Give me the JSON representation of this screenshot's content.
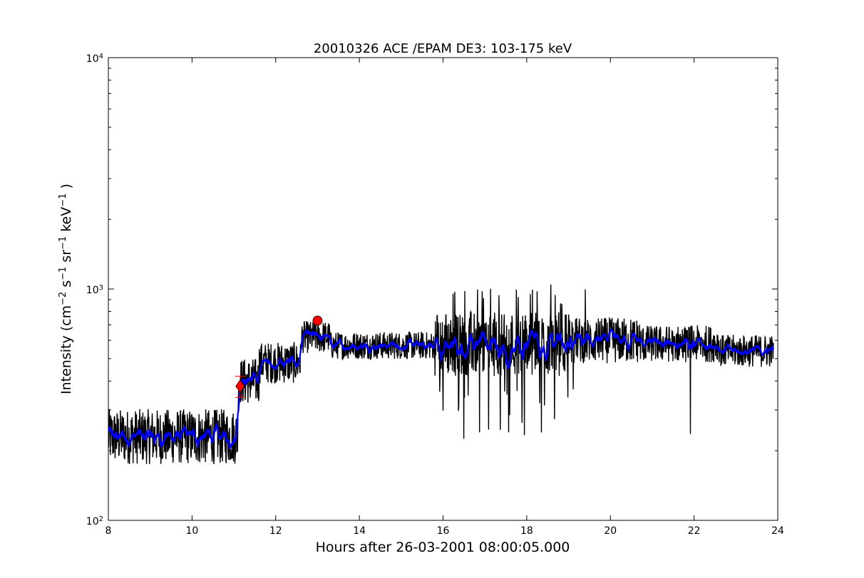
{
  "chart_data": {
    "type": "line",
    "title": "20010326 ACE /EPAM DE3: 103-175 keV",
    "xlabel": "Hours after 26-03-2001 08:00:05.000",
    "ylabel": {
      "prefix": "Intensity (cm",
      "sup1": "−2",
      "s": " s",
      "sup2": "−1",
      "sr": " sr",
      "sup3": "−1",
      "kev": " keV",
      "sup4": "−1",
      "suffix": " )"
    },
    "xlim": [
      8,
      24
    ],
    "ylim": [
      100,
      10000
    ],
    "yscale": "log",
    "x_ticks": [
      8,
      10,
      12,
      14,
      16,
      18,
      20,
      22,
      24
    ],
    "x_tick_labels": [
      "8",
      "10",
      "12",
      "14",
      "16",
      "18",
      "20",
      "22",
      "24"
    ],
    "y_ticks": [
      {
        "base": "10",
        "exp": "2",
        "value": 100
      },
      {
        "base": "10",
        "exp": "3",
        "value": 1000
      },
      {
        "base": "10",
        "exp": "4",
        "value": 10000
      }
    ],
    "grid": false,
    "series_raw_segments": [
      {
        "x0": 8.0,
        "x1": 11.1,
        "level": 230,
        "amp": 0.12
      },
      {
        "x0": 11.1,
        "x1": 11.6,
        "level": 400,
        "amp": 0.1
      },
      {
        "x0": 11.6,
        "x1": 12.6,
        "level": 480,
        "amp": 0.09
      },
      {
        "x0": 12.6,
        "x1": 13.3,
        "level": 620,
        "amp": 0.07
      },
      {
        "x0": 13.3,
        "x1": 15.8,
        "level": 570,
        "amp": 0.06
      },
      {
        "x0": 15.8,
        "x1": 19.0,
        "level": 580,
        "amp": 0.14
      },
      {
        "x0": 19.0,
        "x1": 20.7,
        "level": 600,
        "amp": 0.1
      },
      {
        "x0": 20.7,
        "x1": 22.6,
        "level": 580,
        "amp": 0.08
      },
      {
        "x0": 22.6,
        "x1": 23.9,
        "level": 540,
        "amp": 0.07
      }
    ],
    "series": [
      {
        "color": "#000000"
      },
      {
        "color": "#0000ff"
      }
    ],
    "markers": [
      {
        "shape": "diamond",
        "x": 11.15,
        "y": 380,
        "color": "#ff0000"
      },
      {
        "shape": "circle",
        "x": 13.0,
        "y": 730,
        "color": "#ff0000"
      }
    ],
    "errorbars": [
      {
        "x": 11.15,
        "y": 380,
        "ylow": 340,
        "yhigh": 420,
        "color": "#ff0000"
      }
    ]
  }
}
